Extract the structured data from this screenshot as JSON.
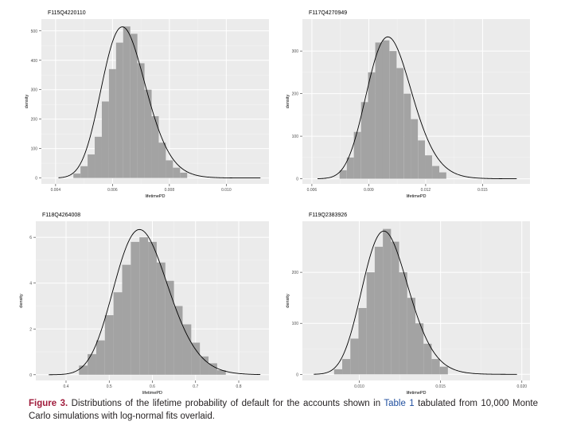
{
  "caption": {
    "figure_label": "Figure 3.",
    "text_before_ref": " Distributions of the lifetime probability of default for the accounts shown in ",
    "ref_label": "Table 1",
    "text_after_ref": " tabulated from 10,000 Monte Carlo simulations with log-normal fits overlaid."
  },
  "chart_data": [
    {
      "type": "bar",
      "title": "F115Q4220110",
      "xlabel": "lifetimePD",
      "ylabel": "density",
      "xlim": [
        0.0035,
        0.0115
      ],
      "ylim": [
        -20,
        540
      ],
      "xticks": [
        0.004,
        0.006,
        0.008,
        0.01
      ],
      "xtick_labels": [
        "0.004",
        "0.006",
        "0.008",
        "0.010"
      ],
      "yticks": [
        0,
        100,
        200,
        300,
        400,
        500
      ],
      "ytick_labels": [
        "0",
        "100",
        "200",
        "300",
        "400",
        "500"
      ],
      "grid": true,
      "fit": {
        "type": "lognormal",
        "meanlog": -5.0456,
        "sdlog": 0.1215,
        "x_range": [
          0.0041,
          0.0112
        ]
      },
      "bins": {
        "width": 0.00025,
        "centers": [
          0.00475,
          0.005,
          0.00525,
          0.0055,
          0.00575,
          0.006,
          0.00625,
          0.0065,
          0.00675,
          0.007,
          0.00725,
          0.0075,
          0.00775,
          0.008,
          0.00825,
          0.0085
        ],
        "values": [
          15,
          40,
          80,
          140,
          260,
          370,
          460,
          515,
          490,
          390,
          300,
          210,
          120,
          60,
          35,
          18
        ]
      }
    },
    {
      "type": "bar",
      "title": "F117Q4270949",
      "xlabel": "lifetimePD",
      "ylabel": "density",
      "xlim": [
        0.0055,
        0.0175
      ],
      "ylim": [
        -12,
        375
      ],
      "xticks": [
        0.006,
        0.009,
        0.012,
        0.015
      ],
      "xtick_labels": [
        "0.006",
        "0.009",
        "0.012",
        "0.015"
      ],
      "yticks": [
        0,
        100,
        200,
        300
      ],
      "ytick_labels": [
        "0",
        "100",
        "200",
        "300"
      ],
      "grid": true,
      "fit": {
        "type": "lognormal",
        "meanlog": -4.5905,
        "sdlog": 0.1188,
        "x_range": [
          0.0063,
          0.0168
        ]
      },
      "bins": {
        "width": 0.000375,
        "centers": [
          0.00765,
          0.00803,
          0.0084,
          0.00878,
          0.00915,
          0.00953,
          0.0099,
          0.01028,
          0.01065,
          0.01103,
          0.0114,
          0.01178,
          0.01215,
          0.01253,
          0.0129
        ],
        "values": [
          20,
          50,
          110,
          180,
          250,
          320,
          325,
          300,
          260,
          200,
          140,
          90,
          55,
          30,
          15
        ]
      }
    },
    {
      "type": "bar",
      "title": "F118Q4264008",
      "xlabel": "lifetimePD",
      "ylabel": "density",
      "xlim": [
        0.33,
        0.87
      ],
      "ylim": [
        -0.25,
        6.7
      ],
      "xticks": [
        0.4,
        0.5,
        0.6,
        0.7,
        0.8
      ],
      "xtick_labels": [
        "0.4",
        "0.5",
        "0.6",
        "0.7",
        "0.8"
      ],
      "yticks": [
        0,
        2,
        4,
        6
      ],
      "ytick_labels": [
        "0",
        "2",
        "4",
        "6"
      ],
      "grid": true,
      "fit": {
        "type": "lognormal",
        "meanlog": -0.5498,
        "sdlog": 0.1097,
        "x_range": [
          0.36,
          0.85
        ]
      },
      "bins": {
        "width": 0.02,
        "centers": [
          0.44,
          0.46,
          0.48,
          0.5,
          0.52,
          0.54,
          0.56,
          0.58,
          0.6,
          0.62,
          0.64,
          0.66,
          0.68,
          0.7,
          0.72,
          0.74,
          0.76
        ],
        "values": [
          0.4,
          0.9,
          1.5,
          2.6,
          3.6,
          4.8,
          5.8,
          6.0,
          5.8,
          4.9,
          4.1,
          3.0,
          2.2,
          1.4,
          0.8,
          0.5,
          0.2
        ]
      }
    },
    {
      "type": "bar",
      "title": "F119Q2383926",
      "xlabel": "lifetimePD",
      "ylabel": "density",
      "xlim": [
        0.0065,
        0.0205
      ],
      "ylim": [
        -12,
        300
      ],
      "xticks": [
        0.01,
        0.015,
        0.02
      ],
      "xtick_labels": [
        "0.010",
        "0.015",
        "0.020"
      ],
      "yticks": [
        0,
        100,
        200
      ],
      "ytick_labels": [
        "0",
        "100",
        "200"
      ],
      "grid": true,
      "fit": {
        "type": "lognormal",
        "meanlog": -4.4496,
        "sdlog": 0.1225,
        "x_range": [
          0.0072,
          0.0197
        ]
      },
      "bins": {
        "width": 0.0005,
        "centers": [
          0.0087,
          0.0092,
          0.0097,
          0.0102,
          0.0107,
          0.0112,
          0.0117,
          0.0122,
          0.0127,
          0.0132,
          0.0137,
          0.0142,
          0.0147,
          0.0152
        ],
        "values": [
          10,
          30,
          70,
          130,
          200,
          250,
          285,
          260,
          200,
          150,
          100,
          60,
          30,
          15
        ]
      }
    }
  ],
  "colors": {
    "panel_bg": "#ebebeb",
    "grid_major": "#ffffff",
    "bar_fill": "#a3a3a3",
    "fit_line": "#000000",
    "axis_text": "#4d4d4d"
  }
}
